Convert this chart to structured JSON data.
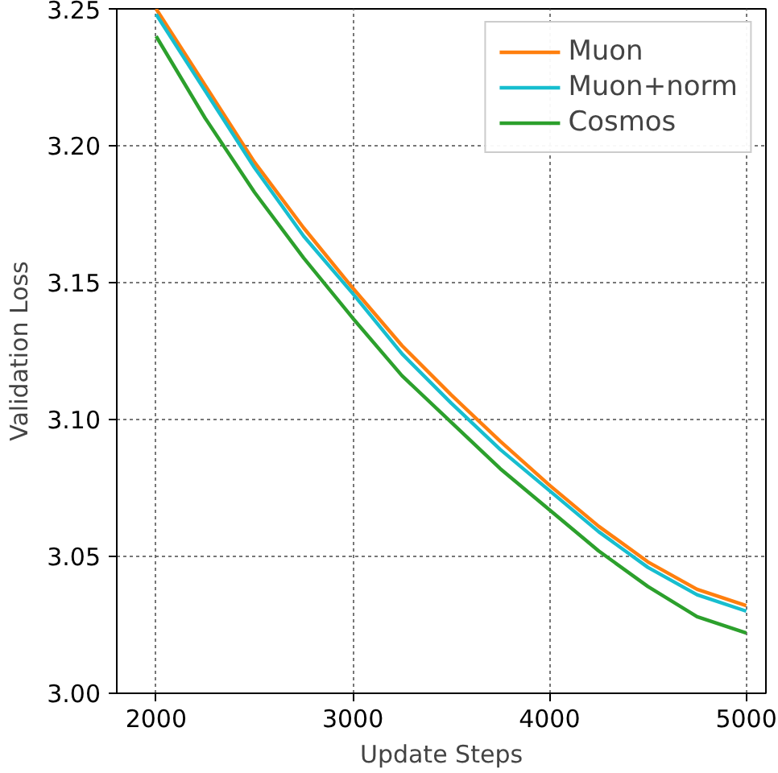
{
  "chart_data": {
    "type": "line",
    "xlabel": "Update Steps",
    "ylabel": "Validation Loss",
    "x": [
      2000,
      2250,
      2500,
      2750,
      3000,
      3250,
      3500,
      3750,
      4000,
      4250,
      4500,
      4750,
      5000
    ],
    "series": [
      {
        "name": "Muon",
        "color": "#ff7f0e",
        "values": [
          3.25,
          3.222,
          3.194,
          3.17,
          3.148,
          3.127,
          3.109,
          3.092,
          3.076,
          3.061,
          3.048,
          3.038,
          3.032
        ]
      },
      {
        "name": "Muon+norm",
        "color": "#17becf",
        "values": [
          3.248,
          3.22,
          3.192,
          3.167,
          3.146,
          3.124,
          3.106,
          3.089,
          3.074,
          3.059,
          3.046,
          3.036,
          3.03
        ]
      },
      {
        "name": "Cosmos",
        "color": "#2ca02c",
        "values": [
          3.24,
          3.21,
          3.183,
          3.159,
          3.137,
          3.116,
          3.099,
          3.082,
          3.067,
          3.052,
          3.039,
          3.028,
          3.022
        ]
      }
    ],
    "xlim": [
      1800,
      5100
    ],
    "ylim": [
      3.0,
      3.25
    ],
    "xticks": [
      2000,
      3000,
      4000,
      5000
    ],
    "yticks": [
      {
        "value": 3.0,
        "label": "3.00"
      },
      {
        "value": 3.05,
        "label": "3.05"
      },
      {
        "value": 3.1,
        "label": "3.10"
      },
      {
        "value": 3.15,
        "label": "3.15"
      },
      {
        "value": 3.2,
        "label": "3.20"
      },
      {
        "value": 3.25,
        "label": "3.25"
      }
    ],
    "grid": true,
    "legend": "top right",
    "marker": "none",
    "line_style": "solid"
  }
}
